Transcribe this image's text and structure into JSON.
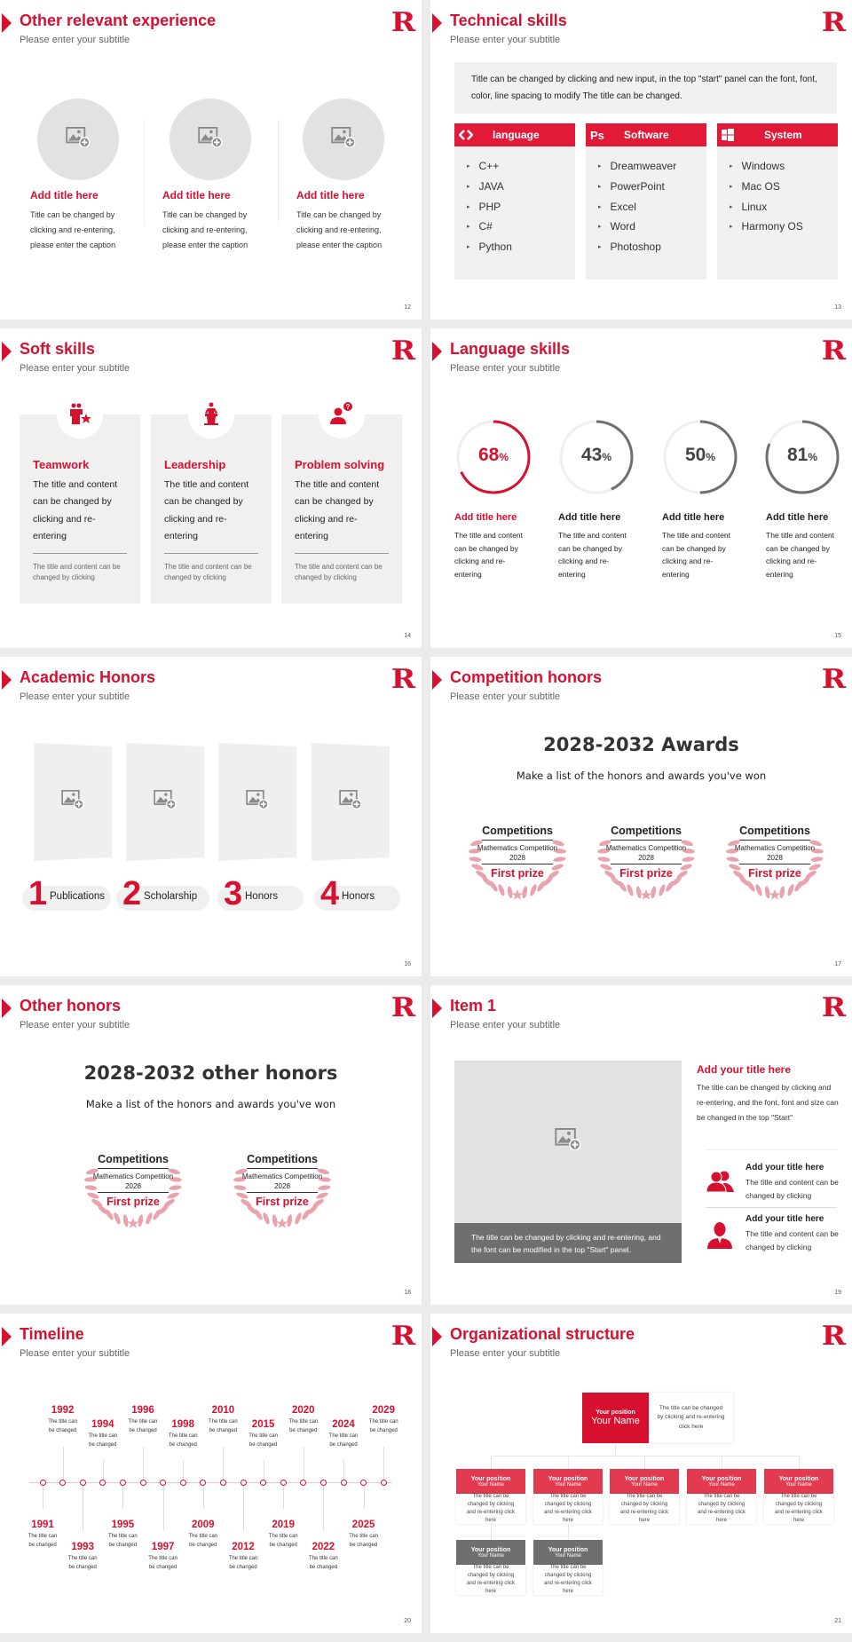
{
  "brand": {
    "accent": "#d7102f",
    "dark_gray": "#6f6f6f",
    "light_gray": "#f0f0f0"
  },
  "logo": "R",
  "slides": [
    {
      "page": "12",
      "title": "Other relevant experience",
      "subtitle": "Please enter your subtitle",
      "items": [
        {
          "title": "Add title here",
          "body": "Title can be changed by clicking and re-entering, please enter the caption"
        },
        {
          "title": "Add title here",
          "body": "Title can be changed by clicking and re-entering, please enter the caption"
        },
        {
          "title": "Add title here",
          "body": "Title can be changed by clicking and re-entering, please enter the caption"
        }
      ]
    },
    {
      "page": "13",
      "title": "Technical skills",
      "subtitle": "Please enter your subtitle",
      "intro": "Title can be changed by clicking and new input, in the top \"start\" panel can the font, font, color, line spacing to modify The title can be changed.",
      "columns": [
        {
          "label": "language",
          "icon": "code-icon",
          "items": [
            "C++",
            "JAVA",
            "PHP",
            "C#",
            "Python"
          ]
        },
        {
          "label": "Software",
          "icon": "photoshop-icon",
          "items": [
            "Dreamweaver",
            "PowerPoint",
            "Excel",
            "Word",
            "Photoshop"
          ]
        },
        {
          "label": "System",
          "icon": "windows-icon",
          "items": [
            "Windows",
            "Mac OS",
            "Linux",
            "Harmony OS"
          ]
        }
      ]
    },
    {
      "page": "14",
      "title": "Soft skills",
      "subtitle": "Please enter your subtitle",
      "cards": [
        {
          "title": "Teamwork",
          "icon": "team-icon",
          "body": "The title and content can be changed by clicking and re-entering",
          "note": "The title and content can be changed by clicking"
        },
        {
          "title": "Leadership",
          "icon": "podium-speaker-icon",
          "body": "The title and content can be changed by clicking and re-entering",
          "note": "The title and content can be changed by clicking"
        },
        {
          "title": "Problem solving",
          "icon": "person-question-icon",
          "body": "The title and content can be changed by clicking and re-entering",
          "note": "The title and content can be changed by clicking"
        }
      ]
    },
    {
      "page": "15",
      "title": "Language skills",
      "subtitle": "Please enter your subtitle",
      "skills": [
        {
          "value": "68",
          "unit": "%",
          "percent": 68,
          "color": "#d7102f",
          "title": "Add title here",
          "body": "The title and content can be changed by clicking and re-entering"
        },
        {
          "value": "43",
          "unit": "%",
          "percent": 43,
          "color": "#6f6f6f",
          "title": "Add title here",
          "body": "The title and content can be changed by clicking and re-entering"
        },
        {
          "value": "50",
          "unit": "%",
          "percent": 50,
          "color": "#6f6f6f",
          "title": "Add title here",
          "body": "The title and content can be changed by clicking and re-entering"
        },
        {
          "value": "81",
          "unit": "%",
          "percent": 81,
          "color": "#6f6f6f",
          "title": "Add title here",
          "body": "The title and content can be changed by clicking and re-entering"
        }
      ]
    },
    {
      "page": "16",
      "title": "Academic Honors",
      "subtitle": "Please enter your subtitle",
      "items": [
        {
          "num": "1",
          "label": "Publications"
        },
        {
          "num": "2",
          "label": "Scholarship"
        },
        {
          "num": "3",
          "label": "Honors"
        },
        {
          "num": "4",
          "label": "Honors"
        }
      ]
    },
    {
      "page": "17",
      "title": "Competition honors",
      "subtitle": "Please enter your subtitle",
      "heading": "2028-2032 Awards",
      "lead": "Make a list of the honors and awards you've won",
      "awards": [
        {
          "category": "Competitions",
          "name": "Mathematics Competition",
          "year": "2028",
          "prize": "First prize"
        },
        {
          "category": "Competitions",
          "name": "Mathematics Competition",
          "year": "2028",
          "prize": "First prize"
        },
        {
          "category": "Competitions",
          "name": "Mathematics Competition",
          "year": "2028",
          "prize": "First prize"
        }
      ]
    },
    {
      "page": "18",
      "title": "Other honors",
      "subtitle": "Please enter your subtitle",
      "heading": "2028-2032 other honors",
      "lead": "Make a list of the honors and awards you've won",
      "awards": [
        {
          "category": "Competitions",
          "name": "Mathematics Competition",
          "year": "2028",
          "prize": "First prize"
        },
        {
          "category": "Competitions",
          "name": "Mathematics Competition",
          "year": "2028",
          "prize": "First prize"
        }
      ]
    },
    {
      "page": "19",
      "title": "Item 1",
      "subtitle": "Please enter your subtitle",
      "caption": "The title can be changed by clicking and re-entering, and the font can be modified in the top \"Start\" panel.",
      "main_title": "Add your title here",
      "main_body": "The title can be changed by clicking and re-entering, and the font, font and size can be changed in the top \"Start\"",
      "rows": [
        {
          "icon": "users-icon",
          "title": "Add your title here",
          "body": "The title and content can be changed by clicking"
        },
        {
          "icon": "user-icon",
          "title": "Add your title here",
          "body": "The title and content can be changed by clicking"
        }
      ]
    },
    {
      "page": "20",
      "title": "Timeline",
      "subtitle": "Please enter your subtitle",
      "events": [
        {
          "year": "1991",
          "text": "The title can be changed"
        },
        {
          "year": "1992",
          "text": "The title can be changed"
        },
        {
          "year": "1993",
          "text": "The title can be changed"
        },
        {
          "year": "1994",
          "text": "The title can be changed"
        },
        {
          "year": "1995",
          "text": "The title can be changed"
        },
        {
          "year": "1996",
          "text": "The title can be changed"
        },
        {
          "year": "1997",
          "text": "The title can be changed"
        },
        {
          "year": "1998",
          "text": "The title can be changed"
        },
        {
          "year": "2009",
          "text": "The title can be changed"
        },
        {
          "year": "2010",
          "text": "The title can be changed"
        },
        {
          "year": "2012",
          "text": "The title can be changed"
        },
        {
          "year": "2015",
          "text": "The title can be changed"
        },
        {
          "year": "2019",
          "text": "The title can be changed"
        },
        {
          "year": "2020",
          "text": "The title can be changed"
        },
        {
          "year": "2022",
          "text": "The title can be changed"
        },
        {
          "year": "2024",
          "text": "The title can be changed"
        },
        {
          "year": "2025",
          "text": "The title can be changed"
        },
        {
          "year": "2029",
          "text": "The title can be changed"
        }
      ]
    },
    {
      "page": "21",
      "title": "Organizational structure",
      "subtitle": "Please enter your subtitle",
      "top": {
        "position": "Your position",
        "name": "Your Name",
        "text": "The title can be changed by clicking and re-entering click here"
      },
      "level2": [
        {
          "position": "Your position",
          "name": "Your Name",
          "text": "The title can be changed by clicking and re-entering click here"
        },
        {
          "position": "Your position",
          "name": "Your Name",
          "text": "The title can be changed by clicking and re-entering click here"
        },
        {
          "position": "Your position",
          "name": "Your Name",
          "text": "The title can be changed by clicking and re-entering click here"
        },
        {
          "position": "Your position",
          "name": "Your Name",
          "text": "The title can be changed by clicking and re-entering click here"
        },
        {
          "position": "Your position",
          "name": "Your Name",
          "text": "The title can be changed by clicking and re-entering click here"
        }
      ],
      "level3": [
        {
          "position": "Your position",
          "name": "Your Name",
          "text": "The title can be changed by clicking and re-entering click here"
        },
        {
          "position": "Your position",
          "name": "Your Name",
          "text": "The title can be changed by clicking and re-entering click here"
        }
      ]
    }
  ]
}
